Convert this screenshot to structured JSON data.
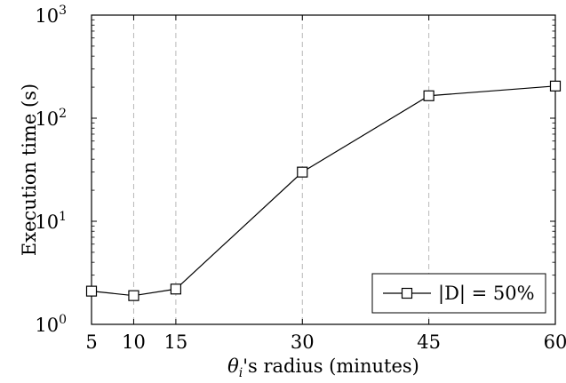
{
  "chart_data": {
    "type": "line",
    "xlabel": "θi's radius (minutes)",
    "xlabel_parts": {
      "theta": "θ",
      "sub": "i",
      "rest": "'s radius (minutes)"
    },
    "ylabel": "Execution time (s)",
    "x_ticks": [
      5,
      10,
      15,
      30,
      45,
      60
    ],
    "y_ticks": [
      {
        "value": 1,
        "base": "10",
        "exp": "0"
      },
      {
        "value": 10,
        "base": "10",
        "exp": "1"
      },
      {
        "value": 100,
        "base": "10",
        "exp": "2"
      },
      {
        "value": 1000,
        "base": "10",
        "exp": "3"
      }
    ],
    "xlim": [
      5,
      60
    ],
    "ylim": [
      1,
      1000
    ],
    "y_scale": "log",
    "vertical_gridlines_at": [
      10,
      15,
      30,
      45
    ],
    "grid": "vertical-dashed",
    "legend_position": "bottom-right",
    "series": [
      {
        "name": "|D| = 50%",
        "marker": "square",
        "color": "#000000",
        "x": [
          5,
          10,
          15,
          30,
          45,
          60
        ],
        "y": [
          2.1,
          1.9,
          2.2,
          30,
          165,
          205
        ]
      }
    ]
  }
}
